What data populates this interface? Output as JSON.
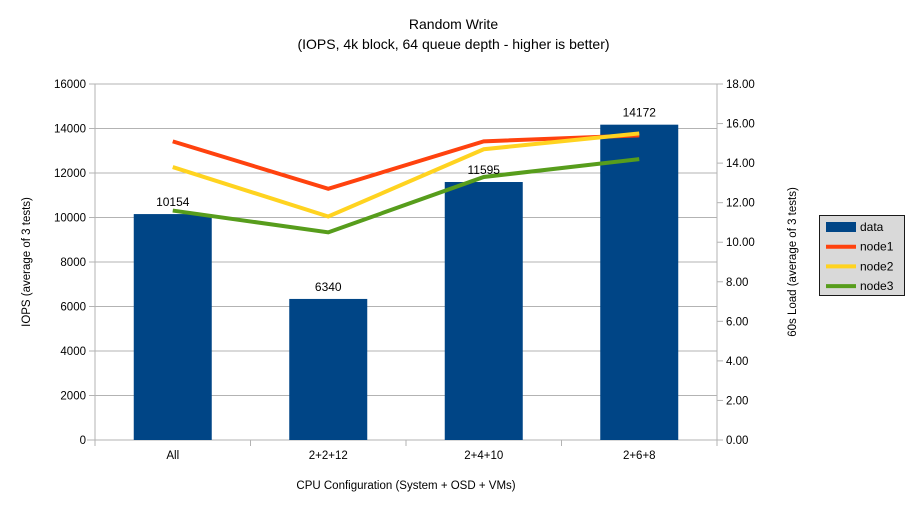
{
  "header": {
    "title": "Random Write",
    "subtitle": "(IOPS, 4k block, 64 queue depth - higher is better)"
  },
  "chart_data": {
    "type": "bar+line",
    "title": "Random Write",
    "subtitle": "(IOPS, 4k block, 64 queue depth - higher is better)",
    "categories": [
      "All",
      "2+2+12",
      "2+4+10",
      "2+6+8"
    ],
    "xlabel": "CPU Configuration (System + OSD + VMs)",
    "left_axis": {
      "label": "IOPS (average of 3 tests)",
      "min": 0,
      "max": 16000,
      "step": 2000,
      "decimals": 0,
      "tick_labels": [
        "0",
        "2000",
        "4000",
        "6000",
        "8000",
        "10000",
        "12000",
        "14000",
        "16000"
      ]
    },
    "right_axis": {
      "label": "60s Load (average of 3 tests)",
      "min": 0,
      "max": 18,
      "step": 2,
      "decimals": 2,
      "tick_labels": [
        "0.00",
        "2.00",
        "4.00",
        "6.00",
        "8.00",
        "10.00",
        "12.00",
        "14.00",
        "16.00",
        "18.00"
      ]
    },
    "series": [
      {
        "name": "data",
        "type": "bar",
        "axis": "left",
        "color": "#004586",
        "values": [
          10154,
          6340,
          11595,
          14172
        ],
        "data_labels": [
          "10154",
          "6340",
          "11595",
          "14172"
        ]
      },
      {
        "name": "node1",
        "type": "line",
        "axis": "right",
        "color": "#ff420e",
        "values": [
          15.1,
          12.7,
          15.1,
          15.4
        ]
      },
      {
        "name": "node2",
        "type": "line",
        "axis": "right",
        "color": "#ffd320",
        "values": [
          13.8,
          11.3,
          14.7,
          15.5
        ]
      },
      {
        "name": "node3",
        "type": "line",
        "axis": "right",
        "color": "#579d1c",
        "values": [
          11.6,
          10.5,
          13.3,
          14.2
        ]
      }
    ],
    "legend": {
      "position": "right",
      "items": [
        "data",
        "node1",
        "node2",
        "node3"
      ]
    },
    "grid": "horizontal-only",
    "colors": {
      "background": "#ffffff",
      "grid": "#b3b3b3",
      "axis": "#b3b3b3",
      "text": "#000000",
      "legend_bg": "#d9d9d9",
      "legend_border": "#1a1a1a"
    }
  }
}
